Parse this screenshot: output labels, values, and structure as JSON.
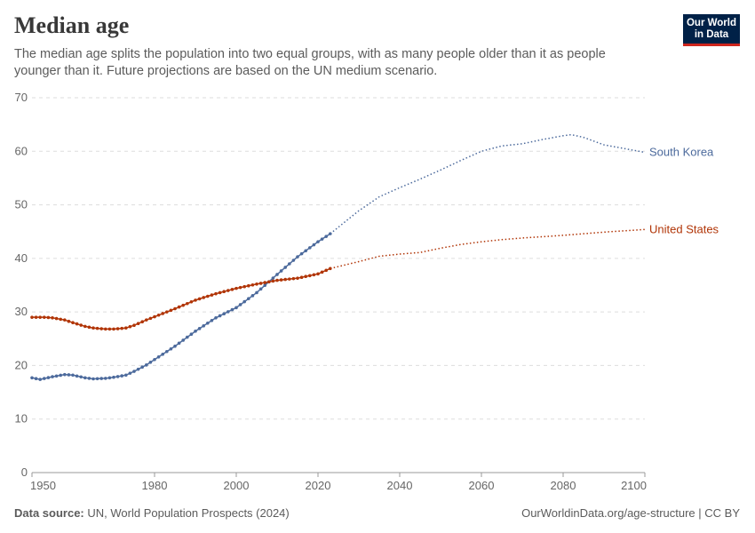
{
  "header": {
    "title": "Median age",
    "subtitle": "The median age splits the population into two equal groups, with as many people older than it as people younger than it. Future projections are based on the UN medium scenario.",
    "logo_text": "Our World in Data"
  },
  "footer": {
    "source_label": "Data source:",
    "source": "UN, World Population Prospects (2024)",
    "url": "OurWorldinData.org/age-structure | CC BY"
  },
  "chart_data": {
    "type": "line",
    "xlim": [
      1950,
      2100
    ],
    "ylim": [
      0,
      70
    ],
    "x_ticks": [
      1950,
      1980,
      2000,
      2020,
      2040,
      2060,
      2080,
      2100
    ],
    "y_ticks": [
      0,
      10,
      20,
      30,
      40,
      50,
      60,
      70
    ],
    "grid": "horizontal dashed",
    "projection_start": 2023,
    "series": [
      {
        "name": "South Korea",
        "color": "#4c6a9c",
        "x": [
          1950,
          1952,
          1955,
          1958,
          1960,
          1963,
          1965,
          1968,
          1970,
          1973,
          1975,
          1978,
          1980,
          1985,
          1990,
          1995,
          2000,
          2005,
          2010,
          2015,
          2020,
          2023,
          2030,
          2035,
          2040,
          2045,
          2050,
          2055,
          2060,
          2065,
          2070,
          2075,
          2080,
          2082,
          2085,
          2090,
          2095,
          2100
        ],
        "values": [
          17.7,
          17.4,
          17.9,
          18.3,
          18.2,
          17.7,
          17.5,
          17.6,
          17.8,
          18.2,
          18.9,
          20.1,
          21.1,
          23.6,
          26.4,
          28.9,
          30.8,
          33.6,
          37.0,
          40.3,
          43.1,
          44.6,
          48.9,
          51.5,
          53.2,
          54.8,
          56.5,
          58.3,
          60.0,
          61.0,
          61.4,
          62.2,
          62.9,
          63.1,
          62.6,
          61.2,
          60.5,
          59.8
        ]
      },
      {
        "name": "United States",
        "color": "#b13507",
        "x": [
          1950,
          1953,
          1955,
          1958,
          1960,
          1963,
          1965,
          1968,
          1970,
          1973,
          1975,
          1978,
          1980,
          1985,
          1990,
          1995,
          2000,
          2005,
          2010,
          2015,
          2020,
          2023,
          2030,
          2035,
          2040,
          2045,
          2050,
          2055,
          2060,
          2065,
          2070,
          2080,
          2090,
          2100
        ],
        "values": [
          29.0,
          29.0,
          28.9,
          28.5,
          28.0,
          27.3,
          27.0,
          26.8,
          26.8,
          27.0,
          27.5,
          28.5,
          29.1,
          30.6,
          32.2,
          33.4,
          34.4,
          35.2,
          35.9,
          36.3,
          37.1,
          38.1,
          39.4,
          40.4,
          40.8,
          41.1,
          41.9,
          42.6,
          43.1,
          43.5,
          43.8,
          44.3,
          44.9,
          45.4
        ]
      }
    ]
  }
}
